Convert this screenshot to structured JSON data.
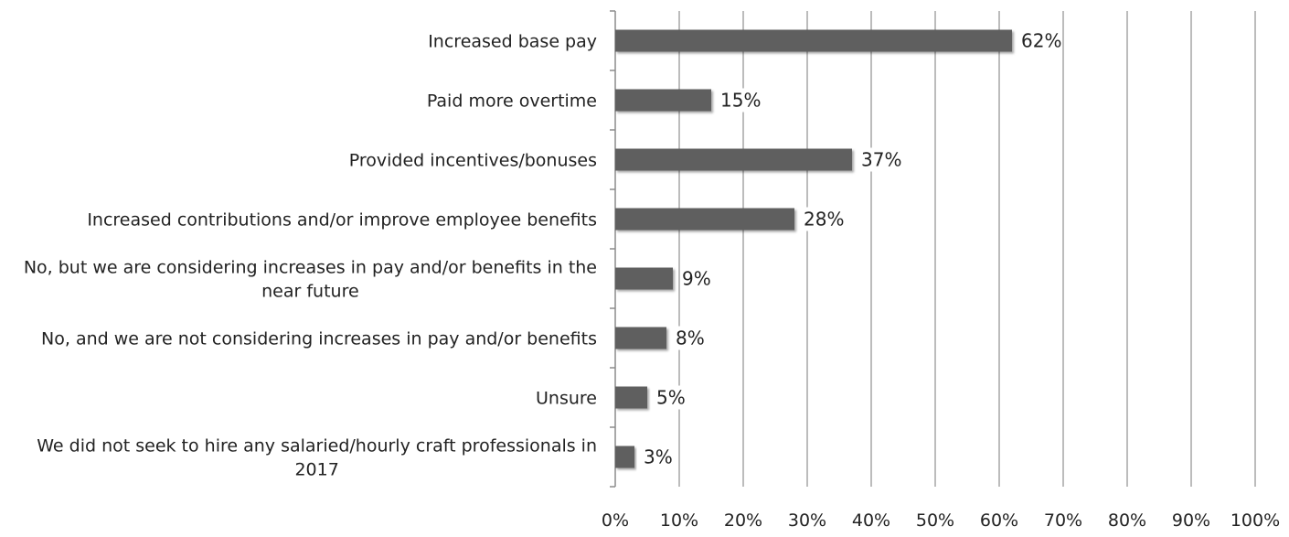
{
  "chart_data": {
    "type": "bar",
    "orientation": "horizontal",
    "categories": [
      "Increased base pay",
      "Paid more overtime",
      "Provided incentives/bonuses",
      "Increased contributions and/or improve employee benefits",
      "No, but we are considering increases in pay and/or benefits in the near future",
      "No, and we are not considering increases in pay and/or benefits",
      "Unsure",
      "We did not seek to hire any salaried/hourly craft professionals in 2017"
    ],
    "category_lines": [
      [
        "Increased base pay"
      ],
      [
        "Paid more overtime"
      ],
      [
        "Provided incentives/bonuses"
      ],
      [
        "Increased contributions and/or improve employee benefits"
      ],
      [
        "No, but we are considering increases in pay and/or benefits in the",
        "near future"
      ],
      [
        "No, and we are not considering increases in pay and/or benefits"
      ],
      [
        "Unsure"
      ],
      [
        "We did not seek to hire any salaried/hourly craft professionals in",
        "2017"
      ]
    ],
    "values": [
      62,
      15,
      37,
      28,
      9,
      8,
      5,
      3
    ],
    "data_labels": [
      "62%",
      "15%",
      "37%",
      "28%",
      "9%",
      "8%",
      "5%",
      "3%"
    ],
    "xlim": [
      0,
      100
    ],
    "x_ticks": [
      0,
      10,
      20,
      30,
      40,
      50,
      60,
      70,
      80,
      90,
      100
    ],
    "x_tick_labels": [
      "0%",
      "10%",
      "20%",
      "30%",
      "40%",
      "50%",
      "60%",
      "70%",
      "80%",
      "90%",
      "100%"
    ],
    "grid": true,
    "legend": "none",
    "bar_color": "#5f5f5f",
    "grid_color": "#a6a6a6"
  }
}
